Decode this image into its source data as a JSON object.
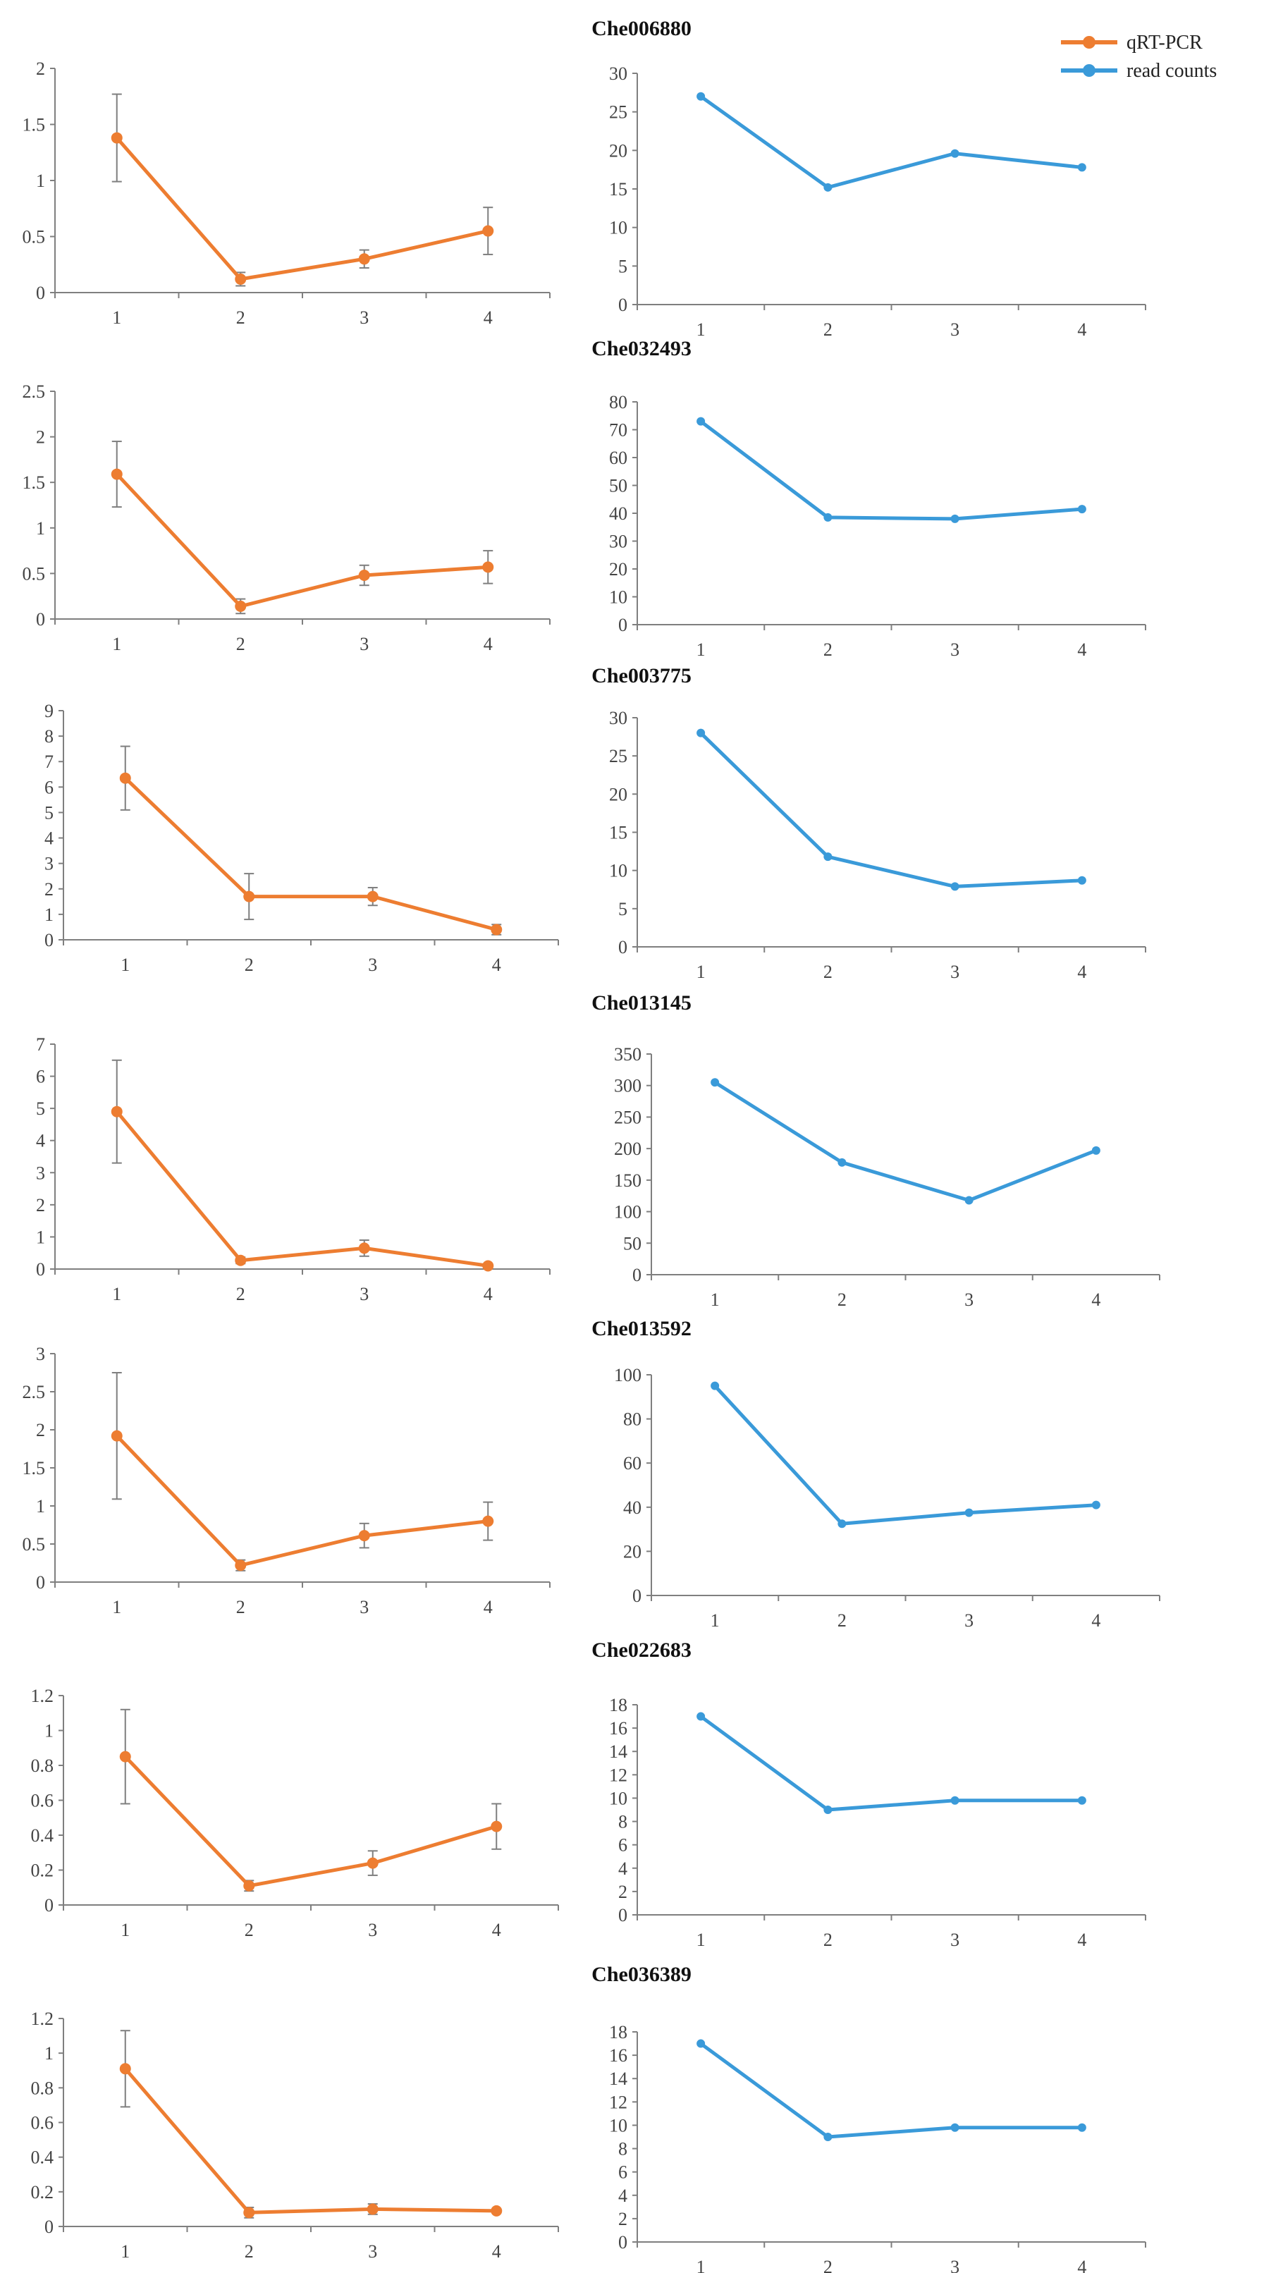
{
  "colors": {
    "qrt": "#ED7D31",
    "reads": "#3A9AD9",
    "axis": "#7f7f7f",
    "text": "#444444"
  },
  "legend": [
    {
      "label": "qRT-PCR",
      "series": "qrt"
    },
    {
      "label": "read counts",
      "series": "reads"
    }
  ],
  "chart_data": [
    {
      "gene": "Che006880",
      "qrt": {
        "type": "line",
        "x": [
          "1",
          "2",
          "3",
          "4"
        ],
        "values": [
          1.38,
          0.12,
          0.3,
          0.55
        ],
        "errors": [
          0.39,
          0.06,
          0.08,
          0.21
        ],
        "ylim": [
          0,
          2
        ],
        "yticks": [
          "0",
          "0.5",
          "1",
          "1.5",
          "2"
        ]
      },
      "reads": {
        "type": "line",
        "x": [
          "1",
          "2",
          "3",
          "4"
        ],
        "values": [
          27,
          15.2,
          19.6,
          17.8
        ],
        "ylim": [
          0,
          30
        ],
        "yticks": [
          "0",
          "5",
          "10",
          "15",
          "20",
          "25",
          "30"
        ]
      }
    },
    {
      "gene": "Che032493",
      "qrt": {
        "type": "line",
        "x": [
          "1",
          "2",
          "3",
          "4"
        ],
        "values": [
          1.59,
          0.14,
          0.48,
          0.57
        ],
        "errors": [
          0.36,
          0.08,
          0.11,
          0.18
        ],
        "ylim": [
          0,
          2.5
        ],
        "yticks": [
          "0",
          "0.5",
          "1",
          "1.5",
          "2",
          "2.5"
        ]
      },
      "reads": {
        "type": "line",
        "x": [
          "1",
          "2",
          "3",
          "4"
        ],
        "values": [
          73,
          38.5,
          38,
          41.5
        ],
        "ylim": [
          0,
          80
        ],
        "yticks": [
          "0",
          "10",
          "20",
          "30",
          "40",
          "50",
          "60",
          "70",
          "80"
        ]
      }
    },
    {
      "gene": "Che003775",
      "qrt": {
        "type": "line",
        "x": [
          "1",
          "2",
          "3",
          "4"
        ],
        "values": [
          6.35,
          1.7,
          1.7,
          0.4
        ],
        "errors": [
          1.25,
          0.9,
          0.35,
          0.2
        ],
        "ylim": [
          0,
          9
        ],
        "yticks": [
          "0",
          "1",
          "2",
          "3",
          "4",
          "5",
          "6",
          "7",
          "8",
          "9"
        ]
      },
      "reads": {
        "type": "line",
        "x": [
          "1",
          "2",
          "3",
          "4"
        ],
        "values": [
          28,
          11.8,
          7.9,
          8.7
        ],
        "ylim": [
          0,
          30
        ],
        "yticks": [
          "0",
          "5",
          "10",
          "15",
          "20",
          "25",
          "30"
        ]
      }
    },
    {
      "gene": "Che013145",
      "qrt": {
        "type": "line",
        "x": [
          "1",
          "2",
          "3",
          "4"
        ],
        "values": [
          4.9,
          0.27,
          0.65,
          0.1
        ],
        "errors": [
          1.6,
          0.1,
          0.25,
          0.05
        ],
        "ylim": [
          0,
          7
        ],
        "yticks": [
          "0",
          "1",
          "2",
          "3",
          "4",
          "5",
          "6",
          "7"
        ]
      },
      "reads": {
        "type": "line",
        "x": [
          "1",
          "2",
          "3",
          "4"
        ],
        "values": [
          305,
          178,
          118,
          197
        ],
        "ylim": [
          0,
          350
        ],
        "yticks": [
          "0",
          "50",
          "100",
          "150",
          "200",
          "250",
          "300",
          "350"
        ]
      }
    },
    {
      "gene": "Che013592",
      "qrt": {
        "type": "line",
        "x": [
          "1",
          "2",
          "3",
          "4"
        ],
        "values": [
          1.92,
          0.22,
          0.61,
          0.8
        ],
        "errors": [
          0.83,
          0.07,
          0.16,
          0.25
        ],
        "ylim": [
          0,
          3
        ],
        "yticks": [
          "0",
          "0.5",
          "1",
          "1.5",
          "2",
          "2.5",
          "3"
        ]
      },
      "reads": {
        "type": "line",
        "x": [
          "1",
          "2",
          "3",
          "4"
        ],
        "values": [
          95,
          32.5,
          37.5,
          41
        ],
        "ylim": [
          0,
          100
        ],
        "yticks": [
          "0",
          "20",
          "40",
          "60",
          "80",
          "100"
        ]
      }
    },
    {
      "gene": "Che022683",
      "qrt": {
        "type": "line",
        "x": [
          "1",
          "2",
          "3",
          "4"
        ],
        "values": [
          0.85,
          0.11,
          0.24,
          0.45
        ],
        "errors": [
          0.27,
          0.03,
          0.07,
          0.13
        ],
        "ylim": [
          0,
          1.2
        ],
        "yticks": [
          "0",
          "0.2",
          "0.4",
          "0.6",
          "0.8",
          "1",
          "1.2"
        ]
      },
      "reads": {
        "type": "line",
        "x": [
          "1",
          "2",
          "3",
          "4"
        ],
        "values": [
          17,
          9,
          9.8,
          9.8
        ],
        "ylim": [
          0,
          18
        ],
        "yticks": [
          "0",
          "2",
          "4",
          "6",
          "8",
          "10",
          "12",
          "14",
          "16",
          "18"
        ]
      }
    },
    {
      "gene": "Che036389",
      "qrt": {
        "type": "line",
        "x": [
          "1",
          "2",
          "3",
          "4"
        ],
        "values": [
          0.91,
          0.08,
          0.1,
          0.09
        ],
        "errors": [
          0.22,
          0.03,
          0.03,
          0.01
        ],
        "ylim": [
          0,
          1.2
        ],
        "yticks": [
          "0",
          "0.2",
          "0.4",
          "0.6",
          "0.8",
          "1",
          "1.2"
        ]
      },
      "reads": {
        "type": "line",
        "x": [
          "1",
          "2",
          "3",
          "4"
        ],
        "values": [
          17,
          9,
          9.8,
          9.8
        ],
        "ylim": [
          0,
          18
        ],
        "yticks": [
          "0",
          "2",
          "4",
          "6",
          "8",
          "10",
          "12",
          "14",
          "16",
          "18"
        ]
      }
    }
  ]
}
